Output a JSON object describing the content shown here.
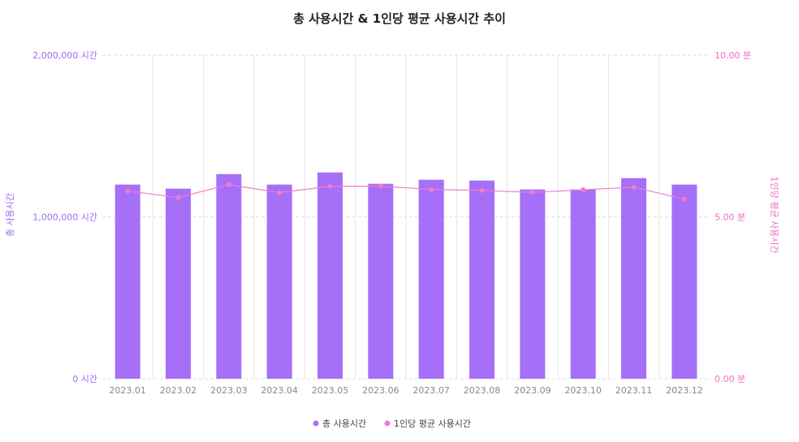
{
  "chart_data": {
    "type": "bar",
    "title": "총 사용시간 & 1인당 평균 사용시간 추이",
    "categories": [
      "2023.01",
      "2023.02",
      "2023.03",
      "2023.04",
      "2023.05",
      "2023.06",
      "2023.07",
      "2023.08",
      "2023.09",
      "2023.10",
      "2023.11",
      "2023.12"
    ],
    "series": [
      {
        "name": "총 사용시간",
        "type": "bar",
        "axis": "left",
        "color": "#a66ff8",
        "values": [
          1200000,
          1175000,
          1265000,
          1200000,
          1275000,
          1205000,
          1230000,
          1225000,
          1170000,
          1170000,
          1240000,
          1200000
        ]
      },
      {
        "name": "1인당 평균 사용시간",
        "type": "line",
        "axis": "right",
        "color": "#f07ccc",
        "values": [
          5.8,
          5.6,
          6.0,
          5.75,
          5.95,
          5.95,
          5.85,
          5.82,
          5.76,
          5.84,
          5.92,
          5.55
        ]
      }
    ],
    "y_left": {
      "ylim": [
        0,
        2000000
      ],
      "ticks": [
        0,
        1000000,
        2000000
      ],
      "tick_labels": [
        "0 시간",
        "1,000,000 시간",
        "2,000,000 시간"
      ],
      "label": "총 사용시간"
    },
    "y_right": {
      "ylim": [
        0,
        10
      ],
      "ticks": [
        0,
        5,
        10
      ],
      "tick_labels": [
        "0.00 분",
        "5.00 분",
        "10.00 분"
      ],
      "label": "1인당 평균 사용시간"
    },
    "grid": true,
    "legend": "bottom-center"
  }
}
